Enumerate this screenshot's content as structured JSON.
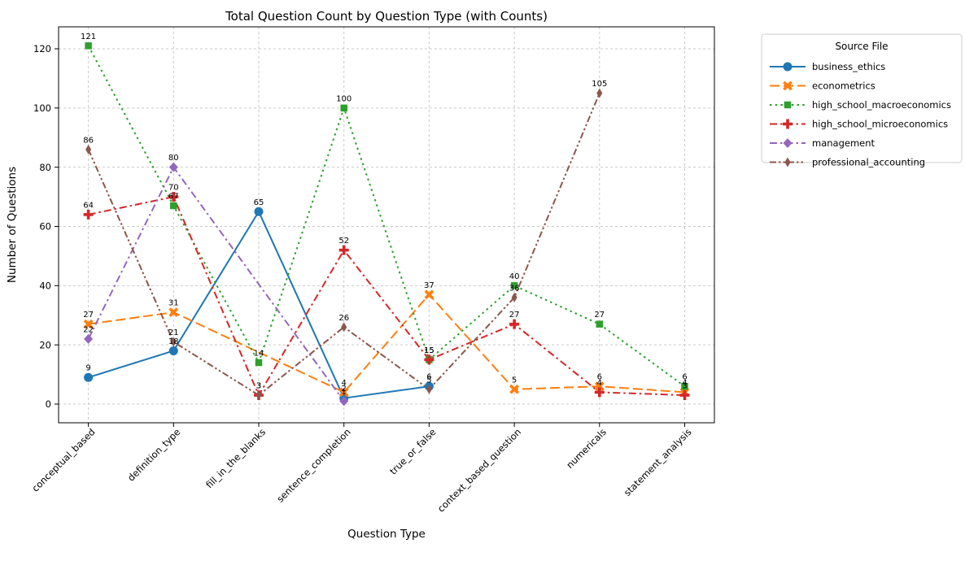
{
  "chart_data": {
    "type": "line",
    "title": "Total Question Count by Question Type (with Counts)",
    "xlabel": "Question Type",
    "ylabel": "Number of Questions",
    "legend_title": "Source File",
    "categories": [
      "conceptual_based",
      "definition_type",
      "fill_in_the_blanks",
      "sentence_completion",
      "true_or_false",
      "context_based_question",
      "numericals",
      "statement_analysis"
    ],
    "yticks": [
      0,
      20,
      40,
      60,
      80,
      100,
      120
    ],
    "ylim": [
      -6.5,
      127.5
    ],
    "grid": true,
    "grid_color": "#c9c9c9",
    "legend_position": "outside-upper-right",
    "series": [
      {
        "name": "business_ethics",
        "color": "#1f77b4",
        "linestyle": "solid",
        "marker": "circle",
        "points": [
          {
            "x": 0,
            "y": 9
          },
          {
            "x": 1,
            "y": 18
          },
          {
            "x": 2,
            "y": 65
          },
          {
            "x": 3,
            "y": 2
          },
          {
            "x": 4,
            "y": 6
          }
        ]
      },
      {
        "name": "econometrics",
        "color": "#ff7f0e",
        "linestyle": "dashed",
        "marker": "X",
        "points": [
          {
            "x": 0,
            "y": 27
          },
          {
            "x": 1,
            "y": 31
          },
          {
            "x": 3,
            "y": 4
          },
          {
            "x": 4,
            "y": 37
          },
          {
            "x": 5,
            "y": 5
          },
          {
            "x": 6,
            "y": 6
          },
          {
            "x": 7,
            "y": 4
          }
        ]
      },
      {
        "name": "high_school_macroeconomics",
        "color": "#2ca02c",
        "linestyle": "dotted",
        "marker": "square",
        "points": [
          {
            "x": 0,
            "y": 121
          },
          {
            "x": 1,
            "y": 67
          },
          {
            "x": 2,
            "y": 14
          },
          {
            "x": 3,
            "y": 100
          },
          {
            "x": 4,
            "y": 15
          },
          {
            "x": 5,
            "y": 40
          },
          {
            "x": 6,
            "y": 27
          },
          {
            "x": 7,
            "y": 6
          }
        ]
      },
      {
        "name": "high_school_microeconomics",
        "color": "#d62728",
        "linestyle": "dashdot",
        "marker": "plus",
        "points": [
          {
            "x": 0,
            "y": 64
          },
          {
            "x": 1,
            "y": 70
          },
          {
            "x": 2,
            "y": 3
          },
          {
            "x": 3,
            "y": 52
          },
          {
            "x": 4,
            "y": 15
          },
          {
            "x": 5,
            "y": 27
          },
          {
            "x": 6,
            "y": 4
          },
          {
            "x": 7,
            "y": 3
          }
        ]
      },
      {
        "name": "management",
        "color": "#9467bd",
        "linestyle": "dashdot",
        "marker": "diamond",
        "points": [
          {
            "x": 0,
            "y": 22
          },
          {
            "x": 1,
            "y": 80
          },
          {
            "x": 3,
            "y": 1
          }
        ]
      },
      {
        "name": "professional_accounting",
        "color": "#8c564b",
        "linestyle": "dashdotdot",
        "marker": "thin-diamond",
        "points": [
          {
            "x": 0,
            "y": 86
          },
          {
            "x": 1,
            "y": 21
          },
          {
            "x": 2,
            "y": 3
          },
          {
            "x": 3,
            "y": 26
          },
          {
            "x": 4,
            "y": 5
          },
          {
            "x": 5,
            "y": 36
          },
          {
            "x": 6,
            "y": 105
          }
        ]
      }
    ]
  }
}
